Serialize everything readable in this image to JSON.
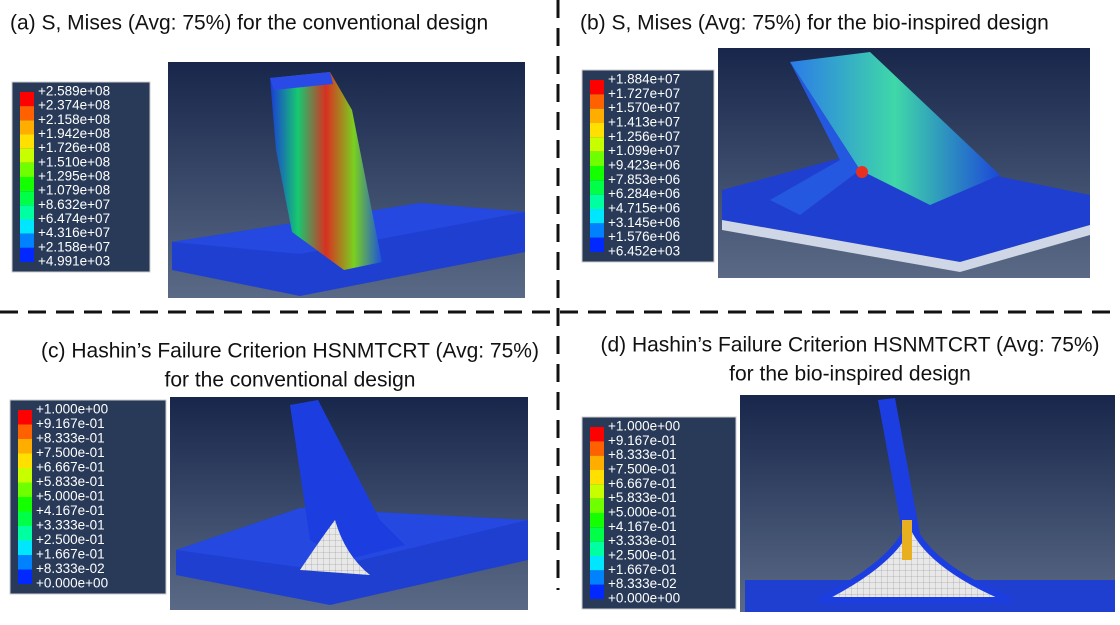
{
  "panels": [
    {
      "title": [
        "(a) S, Mises (Avg: 75%) for the conventional design"
      ],
      "legend": [
        "+2.589e+08",
        "+2.374e+08",
        "+2.158e+08",
        "+1.942e+08",
        "+1.726e+08",
        "+1.510e+08",
        "+1.295e+08",
        "+1.079e+08",
        "+8.632e+07",
        "+6.474e+07",
        "+4.316e+07",
        "+2.158e+07",
        "+4.991e+03"
      ]
    },
    {
      "title": [
        "(b) S, Mises (Avg: 75%) for the bio-inspired design"
      ],
      "legend": [
        "+1.884e+07",
        "+1.727e+07",
        "+1.570e+07",
        "+1.413e+07",
        "+1.256e+07",
        "+1.099e+07",
        "+9.423e+06",
        "+7.853e+06",
        "+6.284e+06",
        "+4.715e+06",
        "+3.145e+06",
        "+1.576e+06",
        "+6.452e+03"
      ]
    },
    {
      "title": [
        "(c) Hashin’s Failure Criterion HSNMTCRT (Avg: 75%)",
        "for the conventional design"
      ],
      "legend": [
        "+1.000e+00",
        "+9.167e-01",
        "+8.333e-01",
        "+7.500e-01",
        "+6.667e-01",
        "+5.833e-01",
        "+5.000e-01",
        "+4.167e-01",
        "+3.333e-01",
        "+2.500e-01",
        "+1.667e-01",
        "+8.333e-02",
        "+0.000e+00"
      ]
    },
    {
      "title": [
        "(d) Hashin’s Failure Criterion HSNMTCRT (Avg: 75%)",
        "for the bio-inspired design"
      ],
      "legend": [
        "+1.000e+00",
        "+9.167e-01",
        "+8.333e-01",
        "+7.500e-01",
        "+6.667e-01",
        "+5.833e-01",
        "+5.000e-01",
        "+4.167e-01",
        "+3.333e-01",
        "+2.500e-01",
        "+1.667e-01",
        "+8.333e-02",
        "+0.000e+00"
      ]
    }
  ]
}
